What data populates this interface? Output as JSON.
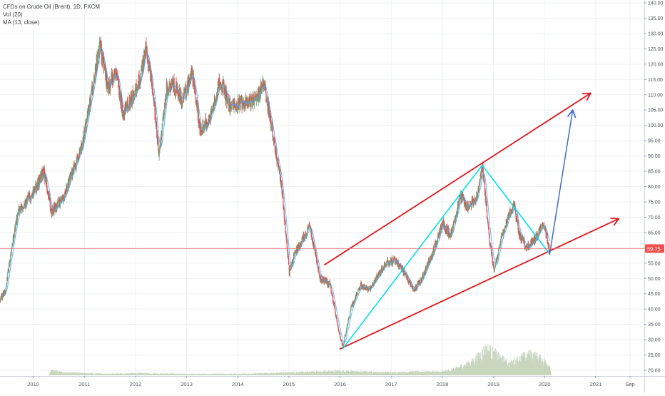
{
  "legend": {
    "symbol_line": "CFDs on Crude Oil (Brent), 1D, FXCM",
    "volume_line": "Vol (20)",
    "ma_line": "MA (13, close)"
  },
  "chart_data": {
    "type": "candlestick",
    "symbol": "CFDs on Crude Oil (Brent)",
    "interval": "1D",
    "source": "FXCM",
    "x_ticks": [
      "2010",
      "2011",
      "2012",
      "2013",
      "2014",
      "2015",
      "2016",
      "2017",
      "2018",
      "2019",
      "2020",
      "2021",
      "Sep"
    ],
    "y_ticks": [
      "20.00",
      "25.00",
      "30.00",
      "35.00",
      "40.00",
      "45.00",
      "50.00",
      "55.00",
      "60.00",
      "65.00",
      "70.00",
      "75.00",
      "80.00",
      "85.00",
      "90.00",
      "95.00",
      "100.00",
      "105.00",
      "110.00",
      "115.00",
      "120.00",
      "125.00",
      "130.00",
      "135.00",
      "140.00"
    ],
    "ylim": [
      17,
      141
    ],
    "xlim": [
      2009.35,
      2021.95
    ],
    "last_price": "59.75",
    "last_price_value": 59.75,
    "price_path": [
      [
        2009.35,
        43
      ],
      [
        2009.45,
        46
      ],
      [
        2009.55,
        58
      ],
      [
        2009.7,
        72
      ],
      [
        2009.85,
        75
      ],
      [
        2010.0,
        78
      ],
      [
        2010.2,
        85
      ],
      [
        2010.35,
        72
      ],
      [
        2010.55,
        75
      ],
      [
        2010.75,
        84
      ],
      [
        2010.95,
        93
      ],
      [
        2011.15,
        112
      ],
      [
        2011.3,
        126
      ],
      [
        2011.45,
        112
      ],
      [
        2011.6,
        118
      ],
      [
        2011.75,
        104
      ],
      [
        2011.9,
        108
      ],
      [
        2012.1,
        116
      ],
      [
        2012.2,
        126
      ],
      [
        2012.35,
        108
      ],
      [
        2012.45,
        90
      ],
      [
        2012.6,
        112
      ],
      [
        2012.75,
        113
      ],
      [
        2012.9,
        108
      ],
      [
        2013.1,
        117
      ],
      [
        2013.25,
        99
      ],
      [
        2013.45,
        102
      ],
      [
        2013.65,
        115
      ],
      [
        2013.85,
        106
      ],
      [
        2014.1,
        108
      ],
      [
        2014.35,
        108
      ],
      [
        2014.5,
        114
      ],
      [
        2014.65,
        100
      ],
      [
        2014.85,
        80
      ],
      [
        2015.0,
        52
      ],
      [
        2015.1,
        58
      ],
      [
        2015.3,
        64
      ],
      [
        2015.4,
        67
      ],
      [
        2015.6,
        50
      ],
      [
        2015.8,
        48
      ],
      [
        2016.0,
        30
      ],
      [
        2016.05,
        28
      ],
      [
        2016.2,
        40
      ],
      [
        2016.4,
        48
      ],
      [
        2016.55,
        46
      ],
      [
        2016.7,
        50
      ],
      [
        2016.9,
        55
      ],
      [
        2017.05,
        56
      ],
      [
        2017.25,
        52
      ],
      [
        2017.45,
        46
      ],
      [
        2017.6,
        50
      ],
      [
        2017.8,
        58
      ],
      [
        2018.0,
        68
      ],
      [
        2018.15,
        64
      ],
      [
        2018.35,
        77
      ],
      [
        2018.5,
        73
      ],
      [
        2018.65,
        76
      ],
      [
        2018.78,
        86
      ],
      [
        2018.9,
        65
      ],
      [
        2019.0,
        52
      ],
      [
        2019.15,
        64
      ],
      [
        2019.3,
        71
      ],
      [
        2019.4,
        74
      ],
      [
        2019.5,
        64
      ],
      [
        2019.65,
        60
      ],
      [
        2019.75,
        62
      ],
      [
        2019.85,
        64
      ],
      [
        2019.95,
        68
      ],
      [
        2020.05,
        63
      ],
      [
        2020.1,
        58
      ]
    ],
    "volume_profile": [
      [
        2009.35,
        0
      ],
      [
        2010.3,
        0
      ],
      [
        2010.35,
        7
      ],
      [
        2010.6,
        4
      ],
      [
        2011.0,
        3
      ],
      [
        2011.5,
        2
      ],
      [
        2012.0,
        3
      ],
      [
        2013.0,
        2
      ],
      [
        2014.0,
        2
      ],
      [
        2014.5,
        3
      ],
      [
        2015.0,
        4
      ],
      [
        2015.5,
        5
      ],
      [
        2016.0,
        6
      ],
      [
        2016.5,
        5
      ],
      [
        2017.0,
        4
      ],
      [
        2017.5,
        5
      ],
      [
        2018.0,
        5
      ],
      [
        2018.2,
        8
      ],
      [
        2018.6,
        20
      ],
      [
        2018.85,
        38
      ],
      [
        2019.0,
        32
      ],
      [
        2019.3,
        16
      ],
      [
        2019.55,
        26
      ],
      [
        2019.75,
        30
      ],
      [
        2019.95,
        22
      ],
      [
        2020.1,
        14
      ],
      [
        2020.12,
        0
      ]
    ],
    "annotations": {
      "channel_upper": [
        [
          2015.7,
          54.5
        ],
        [
          2020.9,
          110.5
        ]
      ],
      "channel_lower": [
        [
          2016.0,
          27
        ],
        [
          2021.45,
          69.5
        ]
      ],
      "zigzag": [
        [
          2016.05,
          27
        ],
        [
          2018.78,
          87
        ],
        [
          2020.1,
          58
        ]
      ],
      "projection": [
        [
          2020.1,
          58
        ],
        [
          2020.55,
          105
        ]
      ]
    },
    "colors": {
      "up_candle": "#6fa87e",
      "down_candle": "#d9534f",
      "ma": "#4aa8ff",
      "channel": "#e0171b",
      "zigzag": "#00e0e8",
      "projection": "#3f6cc9",
      "price_line": "#ef6b6b",
      "price_label_bg": "#ef5350",
      "volume": "#c8d6bf",
      "grid": "#eef0f3",
      "axis_text": "#50535e"
    }
  }
}
